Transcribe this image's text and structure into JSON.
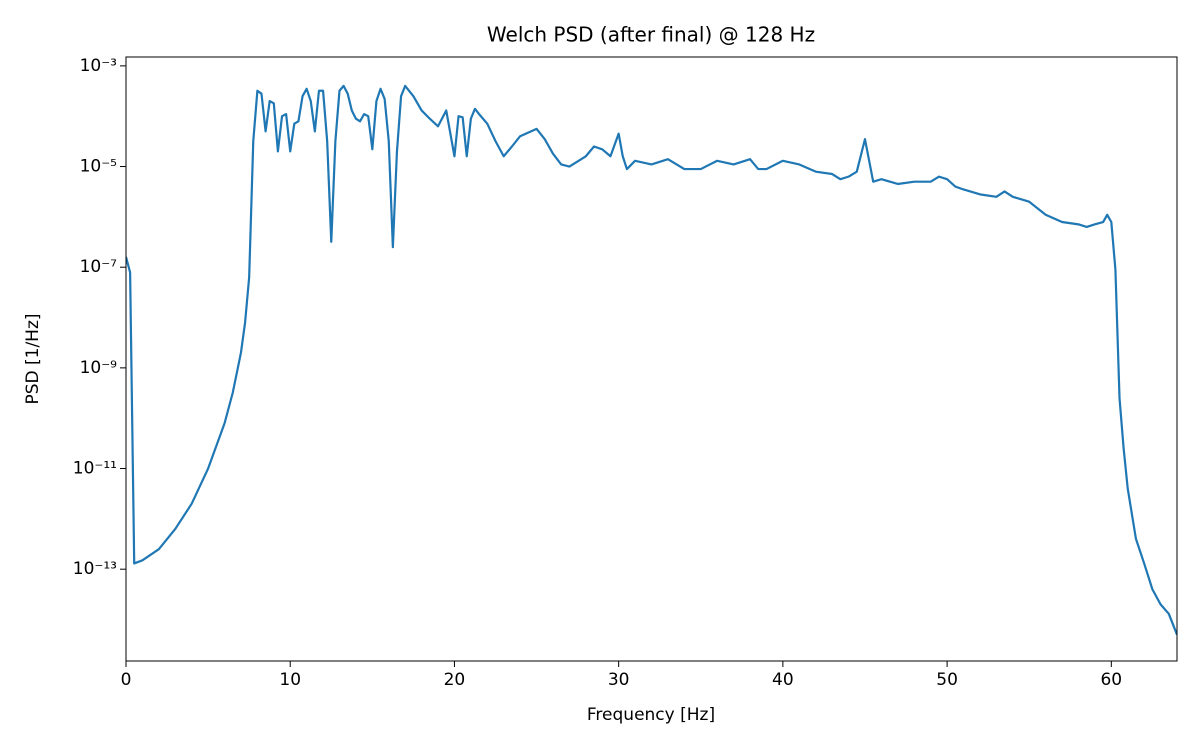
{
  "chart_data": {
    "type": "line",
    "title": "Welch PSD (after final) @ 128 Hz",
    "x_label": "Frequency [Hz]",
    "y_label": "PSD [1/Hz]",
    "color": "#1f77b4",
    "yscale": "log",
    "grid": false,
    "xlim": [
      0,
      64
    ],
    "xticks": [
      0,
      10,
      20,
      30,
      40,
      50,
      60
    ],
    "ylim": [
      1.5e-15,
      0.0015
    ],
    "yticks": [
      {
        "value": 0.001,
        "label": "10⁻³"
      },
      {
        "value": 1e-05,
        "label": "10⁻⁵"
      },
      {
        "value": 1e-07,
        "label": "10⁻⁷"
      },
      {
        "value": 1e-09,
        "label": "10⁻⁹"
      },
      {
        "value": 1e-11,
        "label": "10⁻¹¹"
      },
      {
        "value": 1e-13,
        "label": "10⁻¹³"
      }
    ],
    "x": [
      0,
      0.25,
      0.5,
      1,
      2,
      3,
      4,
      5,
      6,
      6.5,
      7,
      7.25,
      7.5,
      7.75,
      8,
      8.25,
      8.5,
      8.75,
      9,
      9.25,
      9.5,
      9.75,
      10,
      10.25,
      10.5,
      10.75,
      11,
      11.25,
      11.5,
      11.75,
      12,
      12.25,
      12.5,
      12.75,
      13,
      13.25,
      13.5,
      13.75,
      14,
      14.25,
      14.5,
      14.75,
      15,
      15.25,
      15.5,
      15.75,
      16,
      16.25,
      16.5,
      16.75,
      17,
      17.5,
      18,
      18.5,
      19,
      19.5,
      20,
      20.25,
      20.5,
      20.75,
      21,
      21.25,
      21.5,
      22,
      22.5,
      23,
      23.5,
      24,
      25,
      25.5,
      26,
      26.5,
      27,
      28,
      28.5,
      29,
      29.5,
      30,
      30.25,
      30.5,
      31,
      32,
      33,
      34,
      35,
      36,
      37,
      38,
      38.5,
      39,
      40,
      41,
      42,
      43,
      43.5,
      44,
      44.5,
      45,
      45.5,
      46,
      47,
      48,
      49,
      49.5,
      50,
      50.5,
      51,
      52,
      53,
      53.5,
      54,
      55,
      56,
      57,
      58,
      58.5,
      59,
      59.5,
      59.75,
      60,
      60.25,
      60.5,
      60.75,
      61,
      61.5,
      62,
      62.5,
      63,
      63.5,
      64
    ],
    "values": [
      1.6e-07,
      7.9e-08,
      1.3e-13,
      1.5e-13,
      2.5e-13,
      6.3e-13,
      2e-12,
      1e-11,
      7.9e-11,
      3.2e-10,
      2e-09,
      7.9e-09,
      6.3e-08,
      3.2e-05,
      0.00032,
      0.00028,
      5e-05,
      0.0002,
      0.00018,
      2e-05,
      0.0001,
      0.00011,
      2e-05,
      7.1e-05,
      7.9e-05,
      0.00025,
      0.00035,
      0.0002,
      5e-05,
      0.00032,
      0.00032,
      3.2e-05,
      3.2e-07,
      3.2e-05,
      0.00032,
      0.0004,
      0.00028,
      0.00013,
      8.9e-05,
      7.9e-05,
      0.00011,
      0.0001,
      2.2e-05,
      0.0002,
      0.00035,
      0.00022,
      3.2e-05,
      2.5e-07,
      2e-05,
      0.00025,
      0.0004,
      0.00025,
      0.00013,
      8.9e-05,
      6.3e-05,
      0.00013,
      1.6e-05,
      0.0001,
      9.5e-05,
      1.6e-05,
      8.9e-05,
      0.00014,
      0.00011,
      7.1e-05,
      3.2e-05,
      1.6e-05,
      2.5e-05,
      4e-05,
      5.6e-05,
      3.5e-05,
      1.8e-05,
      1.1e-05,
      1e-05,
      1.6e-05,
      2.5e-05,
      2.2e-05,
      1.6e-05,
      4.5e-05,
      1.6e-05,
      8.9e-06,
      1.3e-05,
      1.1e-05,
      1.4e-05,
      8.9e-06,
      8.9e-06,
      1.3e-05,
      1.1e-05,
      1.4e-05,
      8.9e-06,
      8.9e-06,
      1.3e-05,
      1.1e-05,
      7.9e-06,
      7.1e-06,
      5.6e-06,
      6.3e-06,
      7.9e-06,
      3.5e-05,
      5e-06,
      5.6e-06,
      4.5e-06,
      5e-06,
      5e-06,
      6.3e-06,
      5.6e-06,
      4e-06,
      3.5e-06,
      2.8e-06,
      2.5e-06,
      3.2e-06,
      2.5e-06,
      2e-06,
      1.1e-06,
      7.9e-07,
      7.1e-07,
      6.3e-07,
      7.1e-07,
      7.9e-07,
      1.1e-06,
      7.9e-07,
      8.9e-08,
      2.5e-10,
      2.5e-11,
      4e-12,
      4e-13,
      1.3e-13,
      4e-14,
      2e-14,
      1.3e-14,
      5e-15
    ]
  }
}
